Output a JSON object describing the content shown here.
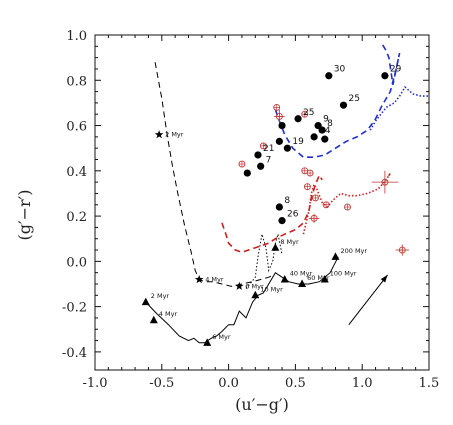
{
  "chart_data": {
    "type": "scatter",
    "title": "",
    "xlabel": "(u′−g′)",
    "ylabel": "(g′−r′)",
    "xlim": [
      -1.0,
      1.5
    ],
    "ylim": [
      -0.48,
      1.0
    ],
    "x_ticks": [
      "-1.0",
      "-0.5",
      "0.0",
      "0.5",
      "1.0",
      "1.5"
    ],
    "y_ticks": [
      "-0.4",
      "-0.2",
      "0.0",
      "0.2",
      "0.4",
      "0.6",
      "0.8",
      "1.0"
    ],
    "colors": {
      "black": "#000000",
      "red": "#cc1f1f",
      "blue": "#1f2fd0",
      "red_open": "#c23a3a"
    },
    "filled_points": [
      {
        "x": 0.75,
        "y": 0.82,
        "label": "30"
      },
      {
        "x": 1.17,
        "y": 0.82,
        "label": "29"
      },
      {
        "x": 0.86,
        "y": 0.69,
        "label": "25"
      },
      {
        "x": 0.52,
        "y": 0.63,
        "label": "25"
      },
      {
        "x": 0.67,
        "y": 0.6,
        "label": "9"
      },
      {
        "x": 0.7,
        "y": 0.58,
        "label": "8"
      },
      {
        "x": 0.64,
        "y": 0.55,
        "label": "24"
      },
      {
        "x": 0.72,
        "y": 0.54,
        "label": ""
      },
      {
        "x": 0.4,
        "y": 0.6,
        "label": ""
      },
      {
        "x": 0.38,
        "y": 0.53,
        "label": ""
      },
      {
        "x": 0.44,
        "y": 0.5,
        "label": "19"
      },
      {
        "x": 0.22,
        "y": 0.47,
        "label": "21"
      },
      {
        "x": 0.24,
        "y": 0.42,
        "label": "7"
      },
      {
        "x": 0.14,
        "y": 0.39,
        "label": ""
      },
      {
        "x": 0.38,
        "y": 0.24,
        "label": "8"
      },
      {
        "x": 0.4,
        "y": 0.18,
        "label": "26"
      }
    ],
    "open_points": [
      {
        "x": 0.36,
        "y": 0.68
      },
      {
        "x": 0.38,
        "y": 0.64
      },
      {
        "x": 0.57,
        "y": 0.65
      },
      {
        "x": 0.26,
        "y": 0.51
      },
      {
        "x": 0.1,
        "y": 0.43
      },
      {
        "x": 0.57,
        "y": 0.4
      },
      {
        "x": 0.61,
        "y": 0.39
      },
      {
        "x": 0.59,
        "y": 0.33
      },
      {
        "x": 0.65,
        "y": 0.28
      },
      {
        "x": 0.73,
        "y": 0.25
      },
      {
        "x": 0.89,
        "y": 0.24
      },
      {
        "x": 0.64,
        "y": 0.19
      },
      {
        "x": 1.17,
        "y": 0.35
      },
      {
        "x": 1.3,
        "y": 0.05
      }
    ],
    "series": [
      {
        "color": "#000000",
        "style": "solid",
        "x": [
          -0.62,
          -0.54,
          -0.45,
          -0.37,
          -0.3,
          -0.26,
          -0.22,
          -0.18,
          -0.13,
          -0.09,
          -0.05,
          0.0,
          0.04,
          0.08,
          0.13,
          0.18,
          0.22,
          0.26,
          0.3,
          0.35,
          0.4,
          0.45,
          0.52,
          0.6,
          0.68,
          0.76,
          0.82
        ],
        "y": [
          -0.18,
          -0.23,
          -0.28,
          -0.33,
          -0.35,
          -0.34,
          -0.36,
          -0.36,
          -0.34,
          -0.33,
          -0.31,
          -0.28,
          -0.28,
          -0.22,
          -0.25,
          -0.18,
          -0.15,
          -0.14,
          -0.1,
          -0.05,
          -0.07,
          -0.09,
          -0.1,
          -0.1,
          -0.09,
          -0.05,
          0.02
        ]
      },
      {
        "color": "#000000",
        "style": "dashed",
        "x": [
          -0.55,
          -0.5,
          -0.46,
          -0.42,
          -0.38,
          -0.33,
          -0.28,
          -0.25,
          -0.22,
          -0.18,
          -0.12,
          -0.05,
          0.02,
          0.1,
          0.18,
          0.24,
          0.3,
          0.34
        ],
        "y": [
          0.88,
          0.72,
          0.56,
          0.42,
          0.3,
          0.16,
          0.04,
          -0.04,
          -0.08,
          -0.09,
          -0.09,
          -0.1,
          -0.11,
          -0.1,
          -0.09,
          -0.08,
          -0.07,
          -0.06
        ]
      },
      {
        "color": "#000000",
        "style": "dotted",
        "x": [
          0.13,
          0.16,
          0.2,
          0.22,
          0.25,
          0.28,
          0.3,
          0.33,
          0.35,
          0.37,
          0.38,
          0.4
        ],
        "y": [
          -0.12,
          -0.1,
          -0.07,
          0.02,
          0.12,
          0.06,
          -0.04,
          0.0,
          0.08,
          0.12,
          0.09,
          0.03
        ]
      },
      {
        "color": "#cc1f1f",
        "style": "dashed",
        "x": [
          -0.05,
          -0.02,
          0.0,
          0.05,
          0.1,
          0.15,
          0.2,
          0.25,
          0.3,
          0.35,
          0.42,
          0.5,
          0.56,
          0.6,
          0.62,
          0.65,
          0.68,
          0.7
        ],
        "y": [
          0.17,
          0.12,
          0.08,
          0.05,
          0.04,
          0.05,
          0.06,
          0.07,
          0.08,
          0.1,
          0.12,
          0.14,
          0.17,
          0.22,
          0.28,
          0.34,
          0.38,
          0.36
        ]
      },
      {
        "color": "#cc1f1f",
        "style": "dotted",
        "x": [
          0.56,
          0.6,
          0.62,
          0.64,
          0.66,
          0.7,
          0.74,
          0.78,
          0.84,
          0.9,
          0.96,
          1.04,
          1.12,
          1.18,
          1.21,
          1.19
        ],
        "y": [
          0.12,
          0.22,
          0.3,
          0.34,
          0.32,
          0.26,
          0.24,
          0.27,
          0.3,
          0.29,
          0.29,
          0.3,
          0.32,
          0.36,
          0.39,
          0.37
        ]
      },
      {
        "color": "#1f2fd0",
        "style": "dashed",
        "x": [
          0.35,
          0.38,
          0.42,
          0.48,
          0.56,
          0.64,
          0.72,
          0.8,
          0.88,
          0.96,
          1.04,
          1.1,
          1.15,
          1.21,
          1.25,
          1.28,
          1.23,
          1.2,
          1.18,
          1.15
        ],
        "y": [
          0.67,
          0.62,
          0.56,
          0.5,
          0.46,
          0.46,
          0.47,
          0.5,
          0.53,
          0.55,
          0.58,
          0.63,
          0.69,
          0.75,
          0.84,
          0.92,
          0.78,
          0.9,
          0.93,
          0.96
        ]
      },
      {
        "color": "#1f2fd0",
        "style": "dotted",
        "x": [
          1.06,
          1.1,
          1.14,
          1.18,
          1.24,
          1.28,
          1.32,
          1.38,
          1.44,
          1.5
        ],
        "y": [
          0.58,
          0.62,
          0.65,
          0.68,
          0.7,
          0.73,
          0.77,
          0.74,
          0.73,
          0.73
        ]
      }
    ],
    "stars": [
      {
        "x": -0.52,
        "y": 0.56,
        "label": "2 Myr"
      },
      {
        "x": -0.22,
        "y": -0.08,
        "label": "4 Myr"
      },
      {
        "x": 0.08,
        "y": -0.11,
        "label": "6 Myr"
      }
    ],
    "triangles": [
      {
        "x": -0.62,
        "y": -0.18,
        "label": "2 Myr"
      },
      {
        "x": -0.56,
        "y": -0.26,
        "label": "4 Myr"
      },
      {
        "x": -0.16,
        "y": -0.36,
        "label": "6 Myr"
      },
      {
        "x": 0.2,
        "y": -0.15,
        "label": "10 Myr"
      },
      {
        "x": 0.35,
        "y": 0.06,
        "label": "8 Myr"
      },
      {
        "x": 0.42,
        "y": -0.08,
        "label": "40 Myr"
      },
      {
        "x": 0.55,
        "y": -0.1,
        "label": "60 Myr"
      },
      {
        "x": 0.72,
        "y": -0.08,
        "label": "100 Myr"
      },
      {
        "x": 0.8,
        "y": 0.02,
        "label": "200 Myr"
      }
    ],
    "arrow": {
      "x1": 0.9,
      "y1": -0.28,
      "x2": 1.19,
      "y2": -0.06
    },
    "error_crosses": [
      {
        "x": 1.17,
        "y": 0.35,
        "dx": 0.1,
        "dy": 0.05
      },
      {
        "x": 1.3,
        "y": 0.05,
        "dx": 0.05,
        "dy": 0.025
      },
      {
        "x": 0.64,
        "y": 0.19,
        "dx": 0.04,
        "dy": 0.02
      },
      {
        "x": 0.38,
        "y": 0.64,
        "dx": 0.04,
        "dy": 0.03
      }
    ],
    "grid": false,
    "legend": "none"
  }
}
